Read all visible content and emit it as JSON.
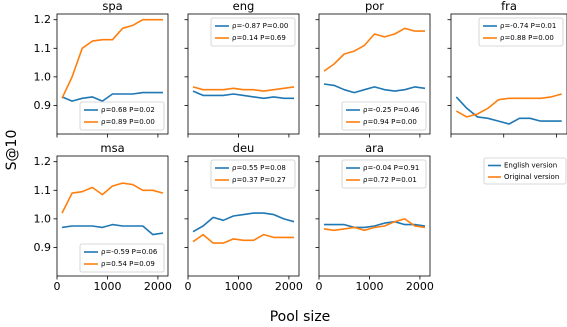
{
  "figure": {
    "ylabel": "S@10",
    "xlabel": "Pool size",
    "legend": {
      "series": [
        "English version",
        "Original version"
      ],
      "colors": [
        "#1f77b4",
        "#ff7f0e"
      ]
    },
    "ylim": [
      0.8,
      1.22
    ],
    "yticks": [
      0.9,
      1.0,
      1.1,
      1.2
    ],
    "yticklabels": [
      "0.9",
      "1.0",
      "1.1",
      "1.2"
    ],
    "xlim": [
      0,
      2200
    ],
    "xticks": [
      0,
      1000,
      2000
    ],
    "xticklabels": [
      "0",
      "1000",
      "2000"
    ]
  },
  "chart_data": [
    {
      "type": "line",
      "title": "spa",
      "x": [
        100,
        300,
        500,
        700,
        900,
        1100,
        1300,
        1500,
        1700,
        1900,
        2100
      ],
      "series": [
        {
          "name": "English version",
          "values": [
            0.93,
            0.915,
            0.925,
            0.93,
            0.915,
            0.94,
            0.94,
            0.94,
            0.945,
            0.945,
            0.945
          ]
        },
        {
          "name": "Original version",
          "values": [
            0.925,
            1.0,
            1.1,
            1.125,
            1.13,
            1.13,
            1.17,
            1.18,
            1.2,
            1.2,
            1.2
          ]
        }
      ],
      "legend_entries": [
        "ρ=0.68 P=0.02",
        "ρ=0.89 P=0.00"
      ],
      "legend_loc": "lower right"
    },
    {
      "type": "line",
      "title": "eng",
      "x": [
        100,
        300,
        500,
        700,
        900,
        1100,
        1300,
        1500,
        1700,
        1900,
        2100
      ],
      "series": [
        {
          "name": "English version",
          "values": [
            0.95,
            0.935,
            0.935,
            0.935,
            0.94,
            0.935,
            0.93,
            0.925,
            0.93,
            0.925,
            0.925
          ]
        },
        {
          "name": "Original version",
          "values": [
            0.965,
            0.955,
            0.955,
            0.955,
            0.96,
            0.955,
            0.955,
            0.95,
            0.955,
            0.96,
            0.965
          ]
        }
      ],
      "legend_entries": [
        "ρ=-0.87 P=0.00",
        "ρ=0.14 P=0.69"
      ],
      "legend_loc": "upper right"
    },
    {
      "type": "line",
      "title": "por",
      "x": [
        100,
        300,
        500,
        700,
        900,
        1100,
        1300,
        1500,
        1700,
        1900,
        2100
      ],
      "series": [
        {
          "name": "English version",
          "values": [
            0.975,
            0.97,
            0.955,
            0.945,
            0.955,
            0.965,
            0.955,
            0.95,
            0.955,
            0.965,
            0.96
          ]
        },
        {
          "name": "Original version",
          "values": [
            1.02,
            1.045,
            1.08,
            1.09,
            1.11,
            1.15,
            1.14,
            1.15,
            1.17,
            1.16,
            1.16
          ]
        }
      ],
      "legend_entries": [
        "ρ=-0.25 P=0.46",
        "ρ=0.94 P=0.00"
      ],
      "legend_loc": "lower right"
    },
    {
      "type": "line",
      "title": "fra",
      "x": [
        100,
        300,
        500,
        700,
        900,
        1100,
        1300,
        1500,
        1700,
        1900,
        2100
      ],
      "series": [
        {
          "name": "English version",
          "values": [
            0.93,
            0.89,
            0.86,
            0.855,
            0.845,
            0.835,
            0.855,
            0.855,
            0.845,
            0.845,
            0.845
          ]
        },
        {
          "name": "Original version",
          "values": [
            0.88,
            0.86,
            0.87,
            0.89,
            0.92,
            0.925,
            0.925,
            0.925,
            0.925,
            0.93,
            0.94
          ]
        }
      ],
      "legend_entries": [
        "ρ=-0.74 P=0.01",
        "ρ=0.88 P=0.00"
      ],
      "legend_loc": "upper right"
    },
    {
      "type": "line",
      "title": "msa",
      "x": [
        100,
        300,
        500,
        700,
        900,
        1100,
        1300,
        1500,
        1700,
        1900,
        2100
      ],
      "series": [
        {
          "name": "English version",
          "values": [
            0.97,
            0.975,
            0.975,
            0.975,
            0.97,
            0.98,
            0.975,
            0.975,
            0.975,
            0.945,
            0.95
          ]
        },
        {
          "name": "Original version",
          "values": [
            1.02,
            1.09,
            1.095,
            1.11,
            1.085,
            1.115,
            1.125,
            1.12,
            1.1,
            1.1,
            1.09
          ]
        }
      ],
      "legend_entries": [
        "ρ=-0.59 P=0.06",
        "ρ=0.54 P=0.09"
      ],
      "legend_loc": "lower right"
    },
    {
      "type": "line",
      "title": "deu",
      "x": [
        100,
        300,
        500,
        700,
        900,
        1100,
        1300,
        1500,
        1700,
        1900,
        2100
      ],
      "series": [
        {
          "name": "English version",
          "values": [
            0.955,
            0.975,
            1.005,
            0.995,
            1.01,
            1.015,
            1.02,
            1.02,
            1.015,
            1.0,
            0.99
          ]
        },
        {
          "name": "Original version",
          "values": [
            0.92,
            0.945,
            0.915,
            0.915,
            0.93,
            0.925,
            0.925,
            0.945,
            0.935,
            0.935,
            0.935
          ]
        }
      ],
      "legend_entries": [
        "ρ=0.55 P=0.08",
        "ρ=0.37 P=0.27"
      ],
      "legend_loc": "upper right"
    },
    {
      "type": "line",
      "title": "ara",
      "x": [
        100,
        300,
        500,
        700,
        900,
        1100,
        1300,
        1500,
        1700,
        1900,
        2100
      ],
      "series": [
        {
          "name": "English version",
          "values": [
            0.98,
            0.98,
            0.98,
            0.97,
            0.97,
            0.975,
            0.985,
            0.99,
            0.98,
            0.98,
            0.975
          ]
        },
        {
          "name": "Original version",
          "values": [
            0.965,
            0.96,
            0.965,
            0.97,
            0.96,
            0.97,
            0.975,
            0.99,
            1.0,
            0.975,
            0.97
          ]
        }
      ],
      "legend_entries": [
        "ρ=-0.04 P=0.91",
        "ρ=0.72 P=0.01"
      ],
      "legend_loc": "upper right"
    }
  ]
}
